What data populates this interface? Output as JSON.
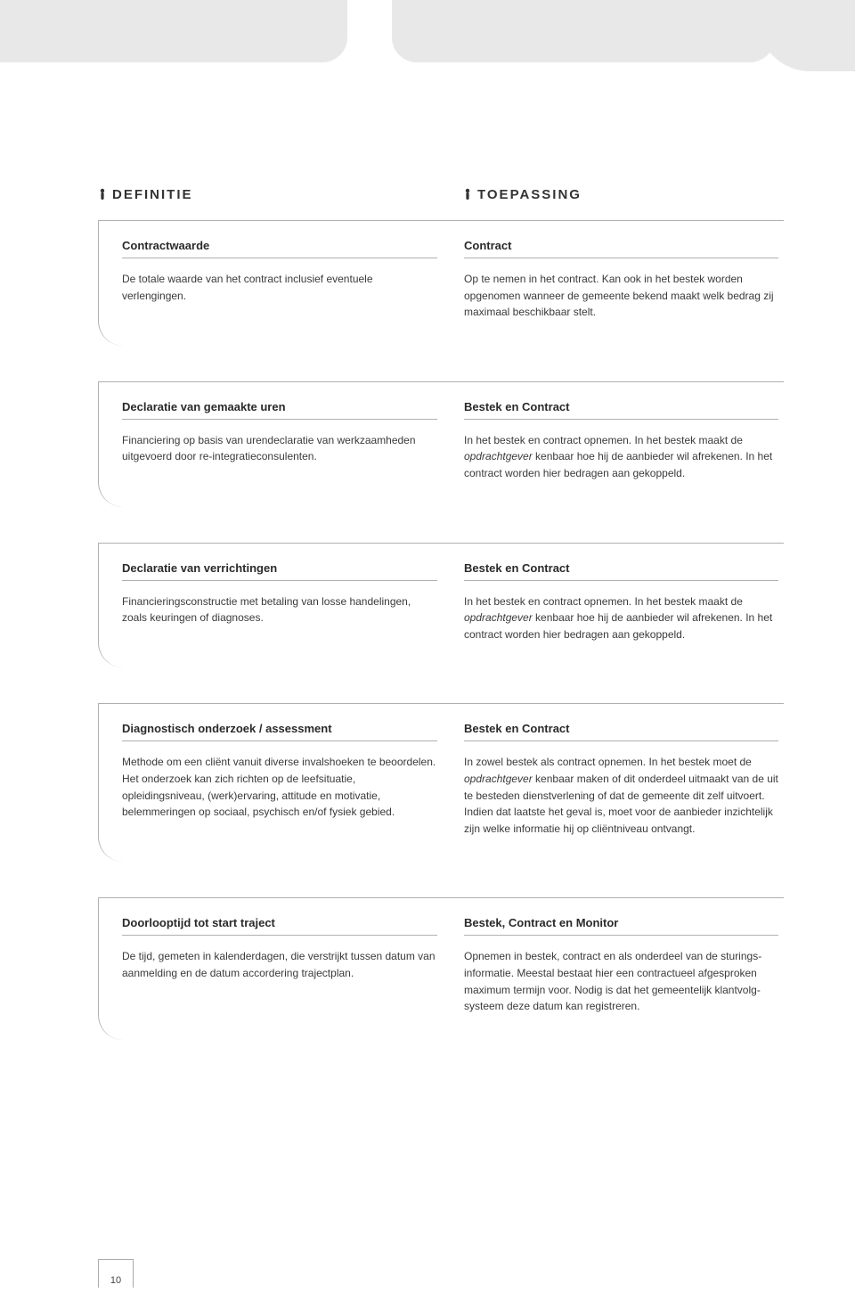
{
  "headings": {
    "left": "DEFINITIE",
    "right": "TOEPASSING"
  },
  "colors": {
    "tab_bg": "#e8e8e8",
    "border": "#b0b0b0",
    "text": "#3a3a3a",
    "heading_text": "#333333",
    "page_bg": "#ffffff"
  },
  "cards": [
    {
      "left_title": "Contractwaarde",
      "left_body": "De totale waarde van het contract inclusief eventuele verlengingen.",
      "right_title": "Contract",
      "right_body": "Op te nemen in het contract. Kan ook in het bestek worden opgenomen wanneer de gemeente bekend maakt welk bedrag zij maximaal beschikbaar stelt."
    },
    {
      "left_title": "Declaratie van gemaakte uren",
      "left_body": "Financiering op basis van urendeclaratie van werkzaamheden uitgevoerd door re-integratieconsulenten.",
      "right_title": "Bestek en Contract",
      "right_body_html": "In het bestek en contract opnemen. In het bestek maakt de <em>opdrachtgever</em> kenbaar hoe hij de aanbieder wil afrekenen. In het contract worden hier bedragen aan gekoppeld."
    },
    {
      "left_title": "Declaratie van verrichtingen",
      "left_body": "Financieringsconstructie met betaling van losse handelingen, zoals keuringen of diagnoses.",
      "right_title": "Bestek en Contract",
      "right_body_html": "In het bestek en contract opnemen. In het bestek maakt de <em>opdrachtgever</em> kenbaar hoe hij de aanbieder wil afrekenen. In het contract worden hier bedragen aan gekoppeld."
    },
    {
      "left_title": "Diagnostisch onderzoek / assessment",
      "left_body": "Methode om een cliënt vanuit diverse invalshoeken te beoordelen. Het onderzoek kan zich richten op de leefsituatie, opleidingsniveau, (werk)ervaring, attitude en motivatie, belemmeringen op sociaal, psychisch en/of fysiek gebied.",
      "right_title": "Bestek en Contract",
      "right_body_html": "In zowel bestek als contract opnemen. In het bestek moet de <em>opdrachtgever</em> kenbaar maken of dit onderdeel uitmaakt van de uit te besteden dienstverlening of dat de gemeente dit zelf uitvoert. Indien dat laatste het geval is, moet voor de aanbieder inzichtelijk zijn welke informatie hij op cliëntniveau ontvangt."
    },
    {
      "left_title": "Doorlooptijd tot start traject",
      "left_body": "De tijd, gemeten in kalenderdagen, die verstrijkt tussen datum van aanmelding en de datum accordering trajectplan.",
      "right_title": "Bestek, Contract en Monitor",
      "right_body": "Opnemen in bestek, contract en als onderdeel van de sturings­informatie. Meestal bestaat hier een contractueel afgesproken maximum termijn voor. Nodig is dat het gemeentelijk klantvolg­systeem deze datum kan registreren."
    }
  ],
  "page_number": "10"
}
